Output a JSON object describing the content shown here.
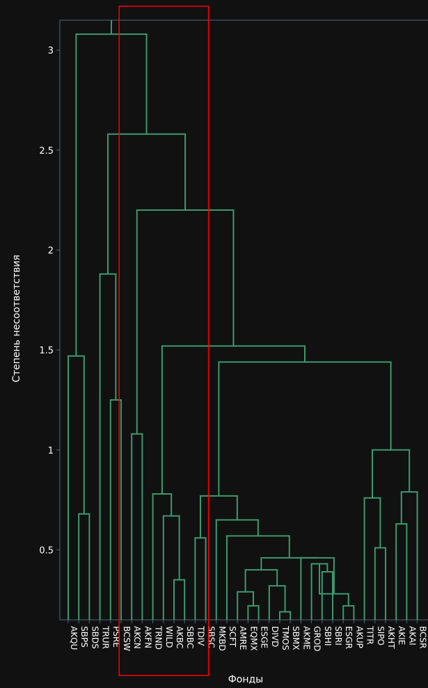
{
  "chart_data": {
    "type": "dendrogram",
    "ylabel": "Степень несоответствия",
    "xlabel": "Фонды",
    "y_ticks": [
      0.5,
      1,
      1.5,
      2,
      2.5,
      3
    ],
    "y_tick_labels": [
      "0.5",
      "1",
      "1.5",
      "2",
      "2.5",
      "3"
    ],
    "ylim": [
      0.15,
      3.15
    ],
    "leaves": [
      "AKQU",
      "SBPS",
      "SBDS",
      "TRUR",
      "PSRE",
      "BCSW",
      "AKCN",
      "AKFN",
      "TRND",
      "WILD",
      "AKBC",
      "SBBC",
      "TDIV",
      "SBSC",
      "MKBD",
      "SCFT",
      "AMRE",
      "EQMX",
      "ESGE",
      "DIVD",
      "TMOS",
      "SBMX",
      "AKME",
      "GROD",
      "SBHI",
      "SBRI",
      "ESGR",
      "AKUP",
      "TITR",
      "SIPO",
      "AKHT",
      "AKIE",
      "AKAI",
      "BCSR"
    ],
    "merges": [
      {
        "left": 1,
        "right": 2,
        "height": 0.68
      },
      {
        "left": 0,
        "right": "m0",
        "height": 1.47
      },
      {
        "left": 4,
        "right": 5,
        "height": 1.25
      },
      {
        "left": 3,
        "right": "m2",
        "height": 1.88
      },
      {
        "left": 6,
        "right": 7,
        "height": 1.08
      },
      {
        "left": 10,
        "right": 11,
        "height": 0.35
      },
      {
        "left": 9,
        "right": "m5",
        "height": 0.67
      },
      {
        "left": 8,
        "right": "m6",
        "height": 0.78
      },
      {
        "left": 12,
        "right": 13,
        "height": 0.56
      },
      {
        "left": 17,
        "right": 18,
        "height": 0.22
      },
      {
        "left": 16,
        "right": "m9",
        "height": 0.29
      },
      {
        "left": 20,
        "right": 21,
        "height": 0.19
      },
      {
        "left": 19,
        "right": "m11",
        "height": 0.32
      },
      {
        "left": "m10",
        "right": "m12",
        "height": 0.4
      },
      {
        "left": 24,
        "right": 25,
        "height": 0.39
      },
      {
        "left": 23,
        "right": "m14",
        "height": 0.43
      },
      {
        "left": 26,
        "right": 27,
        "height": 0.22
      },
      {
        "left": "m15",
        "right": "m16",
        "height": 0.28
      },
      {
        "left": 22,
        "right": "m17",
        "height": 0.46
      },
      {
        "left": "m13",
        "right": "m18",
        "height": 0.46
      },
      {
        "left": 15,
        "right": "m19",
        "height": 0.57
      },
      {
        "left": 14,
        "right": "m20",
        "height": 0.65
      },
      {
        "left": "m8",
        "right": "m21",
        "height": 0.77
      },
      {
        "left": 29,
        "right": 30,
        "height": 0.51
      },
      {
        "left": 28,
        "right": "m23",
        "height": 0.76
      },
      {
        "left": 31,
        "right": 32,
        "height": 0.63
      },
      {
        "left": "m25",
        "right": 33,
        "height": 0.79
      },
      {
        "left": "m24",
        "right": "m26",
        "height": 1.0
      },
      {
        "left": "m22",
        "right": "m27",
        "height": 1.44
      },
      {
        "left": "m7",
        "right": "m28",
        "height": 1.52
      },
      {
        "left": "m4",
        "right": "m29",
        "height": 2.2
      },
      {
        "left": "m3",
        "right": "m30",
        "height": 2.58
      },
      {
        "left": "m1",
        "right": "m31",
        "height": 3.08
      }
    ],
    "link_color": "#3d9970",
    "top_link_color": "#4c8fbf",
    "highlight": {
      "from": "AKCN",
      "to": "SBSC",
      "color": "#ff0000"
    }
  }
}
